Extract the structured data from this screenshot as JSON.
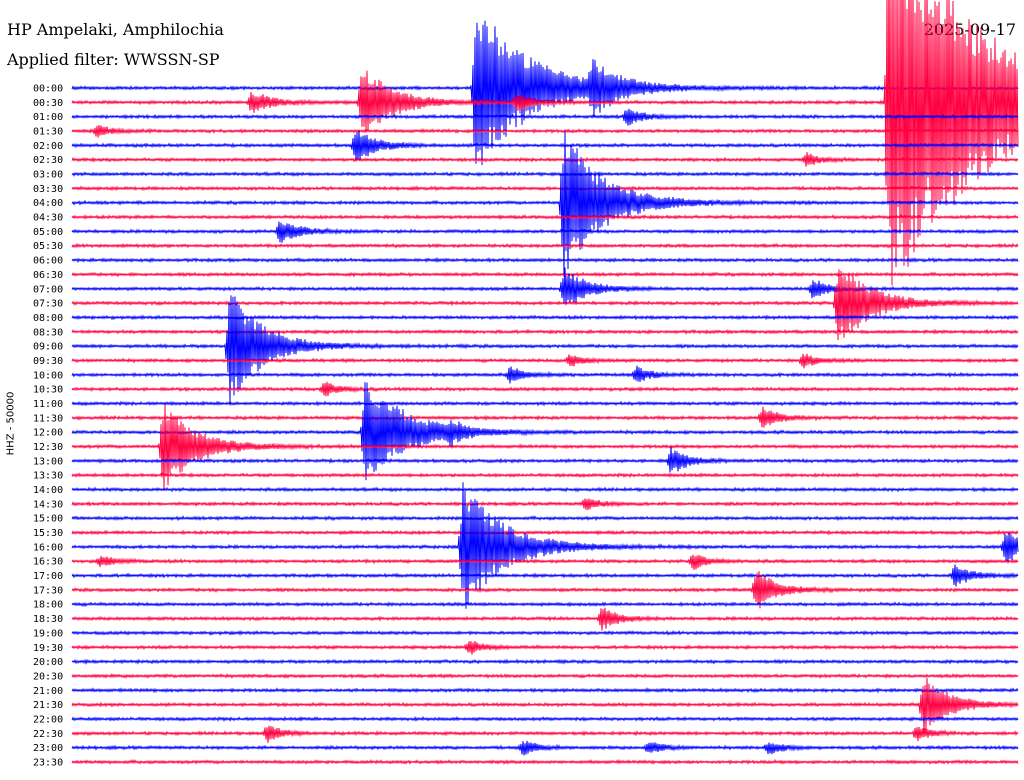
{
  "header": {
    "station": "HP Ampelaki, Amphilochia",
    "filter": "Applied filter: WWSSN-SP",
    "date": "2025-09-17"
  },
  "axis": {
    "ylabel": "HHZ - 50000"
  },
  "colors": {
    "even_trace": "#0000ff",
    "odd_trace": "#ff0040"
  },
  "chart_data": {
    "type": "line",
    "title": "HP Ampelaki, Amphilochia",
    "subtitle": "Applied filter: WWSSN-SP",
    "date": "2025-09-17",
    "ylabel": "HHZ - 50000",
    "row_labels": [
      "00:00",
      "00:30",
      "01:00",
      "01:30",
      "02:00",
      "02:30",
      "03:00",
      "03:30",
      "04:00",
      "04:30",
      "05:00",
      "05:30",
      "06:00",
      "06:30",
      "07:00",
      "07:30",
      "08:00",
      "08:30",
      "09:00",
      "09:30",
      "10:00",
      "10:30",
      "11:00",
      "11:30",
      "12:00",
      "12:30",
      "13:00",
      "13:30",
      "14:00",
      "14:30",
      "15:00",
      "15:30",
      "16:00",
      "16:30",
      "17:00",
      "17:30",
      "18:00",
      "18:30",
      "19:00",
      "19:30",
      "20:00",
      "20:30",
      "21:00",
      "21:30",
      "22:00",
      "22:30",
      "23:00",
      "23:30"
    ],
    "minutes_per_row": 30,
    "events": [
      {
        "row": 0,
        "minute": 12.8,
        "amp": 90,
        "decay": 1.6
      },
      {
        "row": 0,
        "minute": 16.5,
        "amp": 22,
        "decay": 0.8
      },
      {
        "row": 1,
        "minute": 5.7,
        "amp": 12,
        "decay": 0.6
      },
      {
        "row": 1,
        "minute": 9.2,
        "amp": 40,
        "decay": 0.9
      },
      {
        "row": 1,
        "minute": 14.1,
        "amp": 10,
        "decay": 0.5
      },
      {
        "row": 1,
        "minute": 25.9,
        "amp": 200,
        "decay": 3.0
      },
      {
        "row": 2,
        "minute": 17.6,
        "amp": 9,
        "decay": 0.5
      },
      {
        "row": 3,
        "minute": 0.8,
        "amp": 6,
        "decay": 0.4
      },
      {
        "row": 4,
        "minute": 9.0,
        "amp": 18,
        "decay": 0.6
      },
      {
        "row": 5,
        "minute": 23.3,
        "amp": 7,
        "decay": 0.4
      },
      {
        "row": 8,
        "minute": 15.6,
        "amp": 75,
        "decay": 1.2
      },
      {
        "row": 10,
        "minute": 6.6,
        "amp": 12,
        "decay": 0.6
      },
      {
        "row": 14,
        "minute": 15.6,
        "amp": 22,
        "decay": 0.7
      },
      {
        "row": 14,
        "minute": 23.5,
        "amp": 10,
        "decay": 0.5
      },
      {
        "row": 15,
        "minute": 24.3,
        "amp": 45,
        "decay": 1.0
      },
      {
        "row": 18,
        "minute": 5.0,
        "amp": 60,
        "decay": 1.0
      },
      {
        "row": 19,
        "minute": 15.8,
        "amp": 7,
        "decay": 0.4
      },
      {
        "row": 19,
        "minute": 23.2,
        "amp": 8,
        "decay": 0.4
      },
      {
        "row": 20,
        "minute": 13.9,
        "amp": 9,
        "decay": 0.4
      },
      {
        "row": 20,
        "minute": 17.9,
        "amp": 9,
        "decay": 0.4
      },
      {
        "row": 21,
        "minute": 8.0,
        "amp": 8,
        "decay": 0.4
      },
      {
        "row": 23,
        "minute": 21.9,
        "amp": 11,
        "decay": 0.5
      },
      {
        "row": 24,
        "minute": 9.3,
        "amp": 60,
        "decay": 1.2
      },
      {
        "row": 24,
        "minute": 12.0,
        "amp": 8,
        "decay": 0.4
      },
      {
        "row": 25,
        "minute": 2.9,
        "amp": 45,
        "decay": 1.0
      },
      {
        "row": 26,
        "minute": 19.0,
        "amp": 14,
        "decay": 0.5
      },
      {
        "row": 29,
        "minute": 16.3,
        "amp": 7,
        "decay": 0.4
      },
      {
        "row": 32,
        "minute": 12.4,
        "amp": 70,
        "decay": 1.2
      },
      {
        "row": 32,
        "minute": 29.6,
        "amp": 18,
        "decay": 0.5
      },
      {
        "row": 33,
        "minute": 0.9,
        "amp": 6,
        "decay": 0.4
      },
      {
        "row": 33,
        "minute": 19.7,
        "amp": 9,
        "decay": 0.4
      },
      {
        "row": 34,
        "minute": 28.0,
        "amp": 11,
        "decay": 0.5
      },
      {
        "row": 35,
        "minute": 21.7,
        "amp": 22,
        "decay": 0.6
      },
      {
        "row": 37,
        "minute": 16.8,
        "amp": 12,
        "decay": 0.5
      },
      {
        "row": 39,
        "minute": 12.6,
        "amp": 8,
        "decay": 0.4
      },
      {
        "row": 43,
        "minute": 27.0,
        "amp": 30,
        "decay": 0.8
      },
      {
        "row": 45,
        "minute": 6.2,
        "amp": 10,
        "decay": 0.4
      },
      {
        "row": 45,
        "minute": 26.8,
        "amp": 8,
        "decay": 0.4
      },
      {
        "row": 46,
        "minute": 14.3,
        "amp": 8,
        "decay": 0.4
      },
      {
        "row": 46,
        "minute": 18.3,
        "amp": 7,
        "decay": 0.4
      },
      {
        "row": 46,
        "minute": 22.1,
        "amp": 7,
        "decay": 0.4
      }
    ],
    "grid": false,
    "legend": "none"
  }
}
